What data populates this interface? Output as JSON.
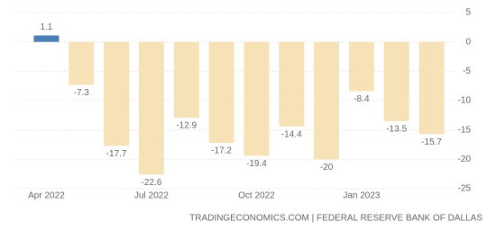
{
  "chart_data": {
    "type": "bar",
    "categories": [
      "Apr 2022",
      null,
      null,
      "Jul 2022",
      null,
      null,
      "Oct 2022",
      null,
      null,
      "Jan 2023",
      null,
      null
    ],
    "values": [
      1.1,
      -7.3,
      -17.7,
      -22.6,
      -12.9,
      -17.2,
      -19.4,
      -14.4,
      -20,
      -8.4,
      -13.5,
      -15.7
    ],
    "colors": [
      "#4a7eb5",
      "#f7e2b7",
      "#f7e2b7",
      "#f7e2b7",
      "#f7e2b7",
      "#f7e2b7",
      "#f7e2b7",
      "#f7e2b7",
      "#f7e2b7",
      "#f7e2b7",
      "#f7e2b7",
      "#f7e2b7"
    ],
    "ylim": [
      -25,
      5
    ],
    "yticks": [
      5,
      0,
      -5,
      -10,
      -15,
      -20,
      -25
    ],
    "grid": true,
    "source": "TRADINGECONOMICS.COM | FEDERAL RESERVE BANK OF DALLAS"
  }
}
